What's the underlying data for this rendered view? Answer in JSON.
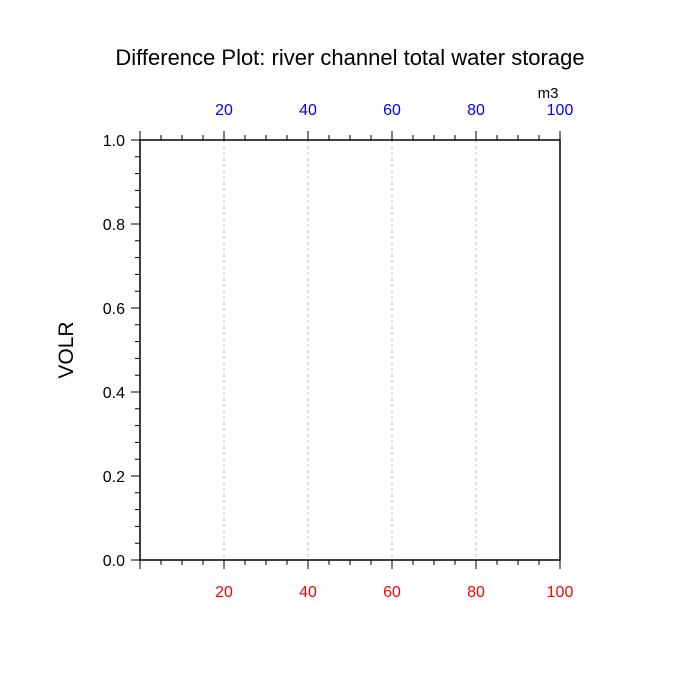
{
  "chart_data": {
    "type": "line",
    "title": "Difference Plot: river channel total water storage",
    "ylabel": "VOLR",
    "xlabel": "",
    "top_axis_unit": "m3",
    "xlim": [
      0,
      100
    ],
    "ylim": [
      0.0,
      1.0
    ],
    "bottom_xticks": [
      "20",
      "40",
      "60",
      "80",
      "100"
    ],
    "top_xticks": [
      "20",
      "40",
      "60",
      "80",
      "100"
    ],
    "yticks": [
      "0.0",
      "0.2",
      "0.4",
      "0.6",
      "0.8",
      "1.0"
    ],
    "bottom_tick_color": "#ff0000",
    "top_tick_color": "#0000ff",
    "grid": "vertical dashed",
    "series": []
  }
}
